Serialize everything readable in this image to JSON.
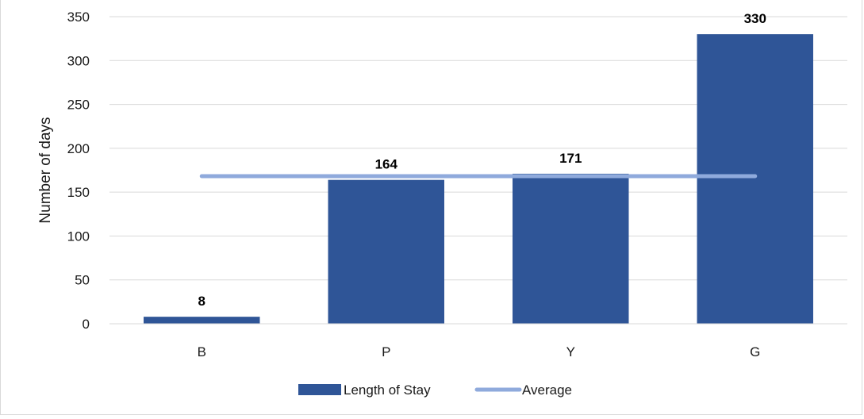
{
  "chart_data": {
    "type": "bar",
    "categories": [
      "B",
      "P",
      "Y",
      "G"
    ],
    "series": [
      {
        "name": "Length of Stay",
        "type": "bar",
        "values": [
          8,
          164,
          171,
          330
        ],
        "data_labels": [
          "8",
          "164",
          "171",
          "330"
        ],
        "color": "#2f5597"
      },
      {
        "name": "Average",
        "type": "line",
        "values": [
          168.25,
          168.25,
          168.25,
          168.25
        ],
        "color": "#8faadc"
      }
    ],
    "xlabel": "",
    "ylabel": "Number of days",
    "ylim": [
      0,
      350
    ],
    "yticks": [
      0,
      50,
      100,
      150,
      200,
      250,
      300,
      350
    ],
    "ytick_labels": [
      "0",
      "50",
      "100",
      "150",
      "200",
      "250",
      "300",
      "350"
    ],
    "grid": true,
    "gridline_color": "#d9d9d9",
    "legend_position": "bottom"
  }
}
